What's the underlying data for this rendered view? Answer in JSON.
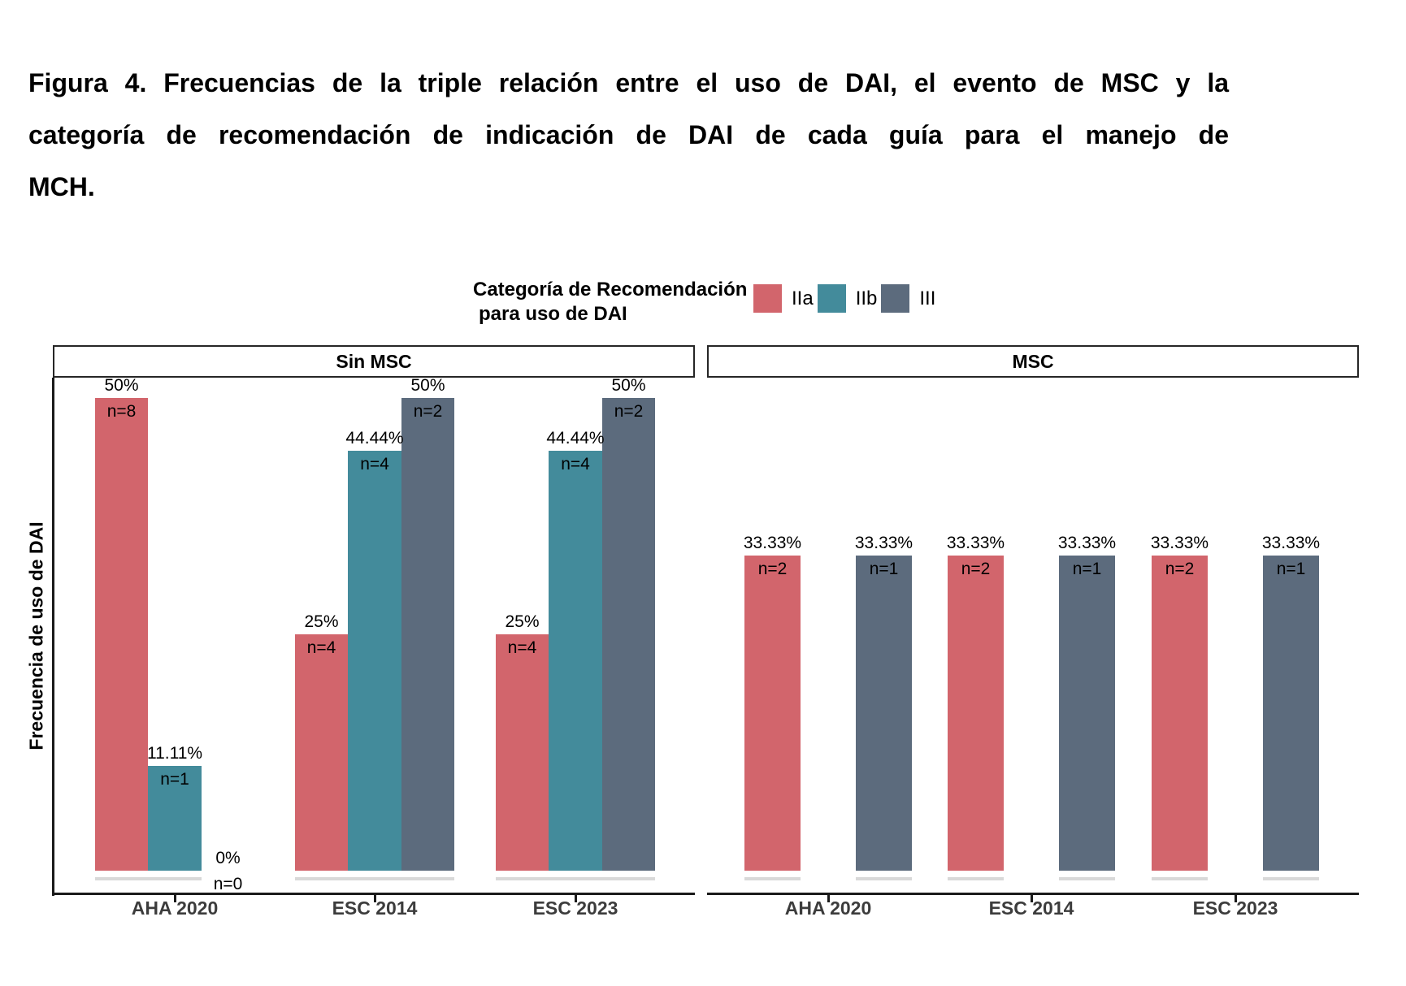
{
  "figure": {
    "title_lines": [
      "Figura 4. Frecuencias de la triple relación entre el uso de DAI, el evento de MSC y la",
      "categoría de recomendación de indicación de DAI de cada guía para el manejo de",
      "MCH."
    ]
  },
  "chart_data": {
    "type": "bar",
    "title": "Figura 4. Frecuencias de la triple relación entre el uso de DAI, el evento de MSC y la categoría de recomendación de indicación de DAI de cada guía para el manejo de MCH.",
    "xlabel": "",
    "ylabel": "Frecuencia de uso de DAI",
    "ylim": [
      0,
      55
    ],
    "grid": false,
    "legend": {
      "position": "top",
      "title_lines": [
        "Categoría de Recomendación",
        "para uso de DAI"
      ],
      "items": [
        {
          "label": "IIa",
          "color": "#D2656C"
        },
        {
          "label": "IIb",
          "color": "#438B9B"
        },
        {
          "label": "III",
          "color": "#5C6B7D"
        }
      ]
    },
    "facets": [
      {
        "label": "Sin MSC",
        "categories": [
          "AHA 2020",
          "ESC 2014",
          "ESC 2023"
        ],
        "series": [
          {
            "name": "IIa",
            "values": [
              50,
              25,
              25
            ],
            "pct_labels": [
              "50%",
              "25%",
              "25%"
            ],
            "n_labels": [
              "n=8",
              "n=4",
              "n=4"
            ]
          },
          {
            "name": "IIb",
            "values": [
              11.11,
              44.44,
              44.44
            ],
            "pct_labels": [
              "11.11%",
              "44.44%",
              "44.44%"
            ],
            "n_labels": [
              "n=1",
              "n=4",
              "n=4"
            ]
          },
          {
            "name": "III",
            "values": [
              0,
              50,
              50
            ],
            "pct_labels": [
              "0%",
              "50%",
              "50%"
            ],
            "n_labels": [
              "n=0",
              "n=2",
              "n=2"
            ]
          }
        ]
      },
      {
        "label": "MSC",
        "categories": [
          "AHA 2020",
          "ESC 2014",
          "ESC 2023"
        ],
        "series": [
          {
            "name": "IIa",
            "values": [
              33.33,
              33.33,
              33.33
            ],
            "pct_labels": [
              "33.33%",
              "33.33%",
              "33.33%"
            ],
            "n_labels": [
              "n=2",
              "n=2",
              "n=2"
            ]
          },
          {
            "name": "IIb",
            "values": [
              null,
              null,
              null
            ],
            "pct_labels": [
              null,
              null,
              null
            ],
            "n_labels": [
              null,
              null,
              null
            ]
          },
          {
            "name": "III",
            "values": [
              33.33,
              33.33,
              33.33
            ],
            "pct_labels": [
              "33.33%",
              "33.33%",
              "33.33%"
            ],
            "n_labels": [
              "n=1",
              "n=1",
              "n=1"
            ]
          }
        ]
      }
    ]
  }
}
